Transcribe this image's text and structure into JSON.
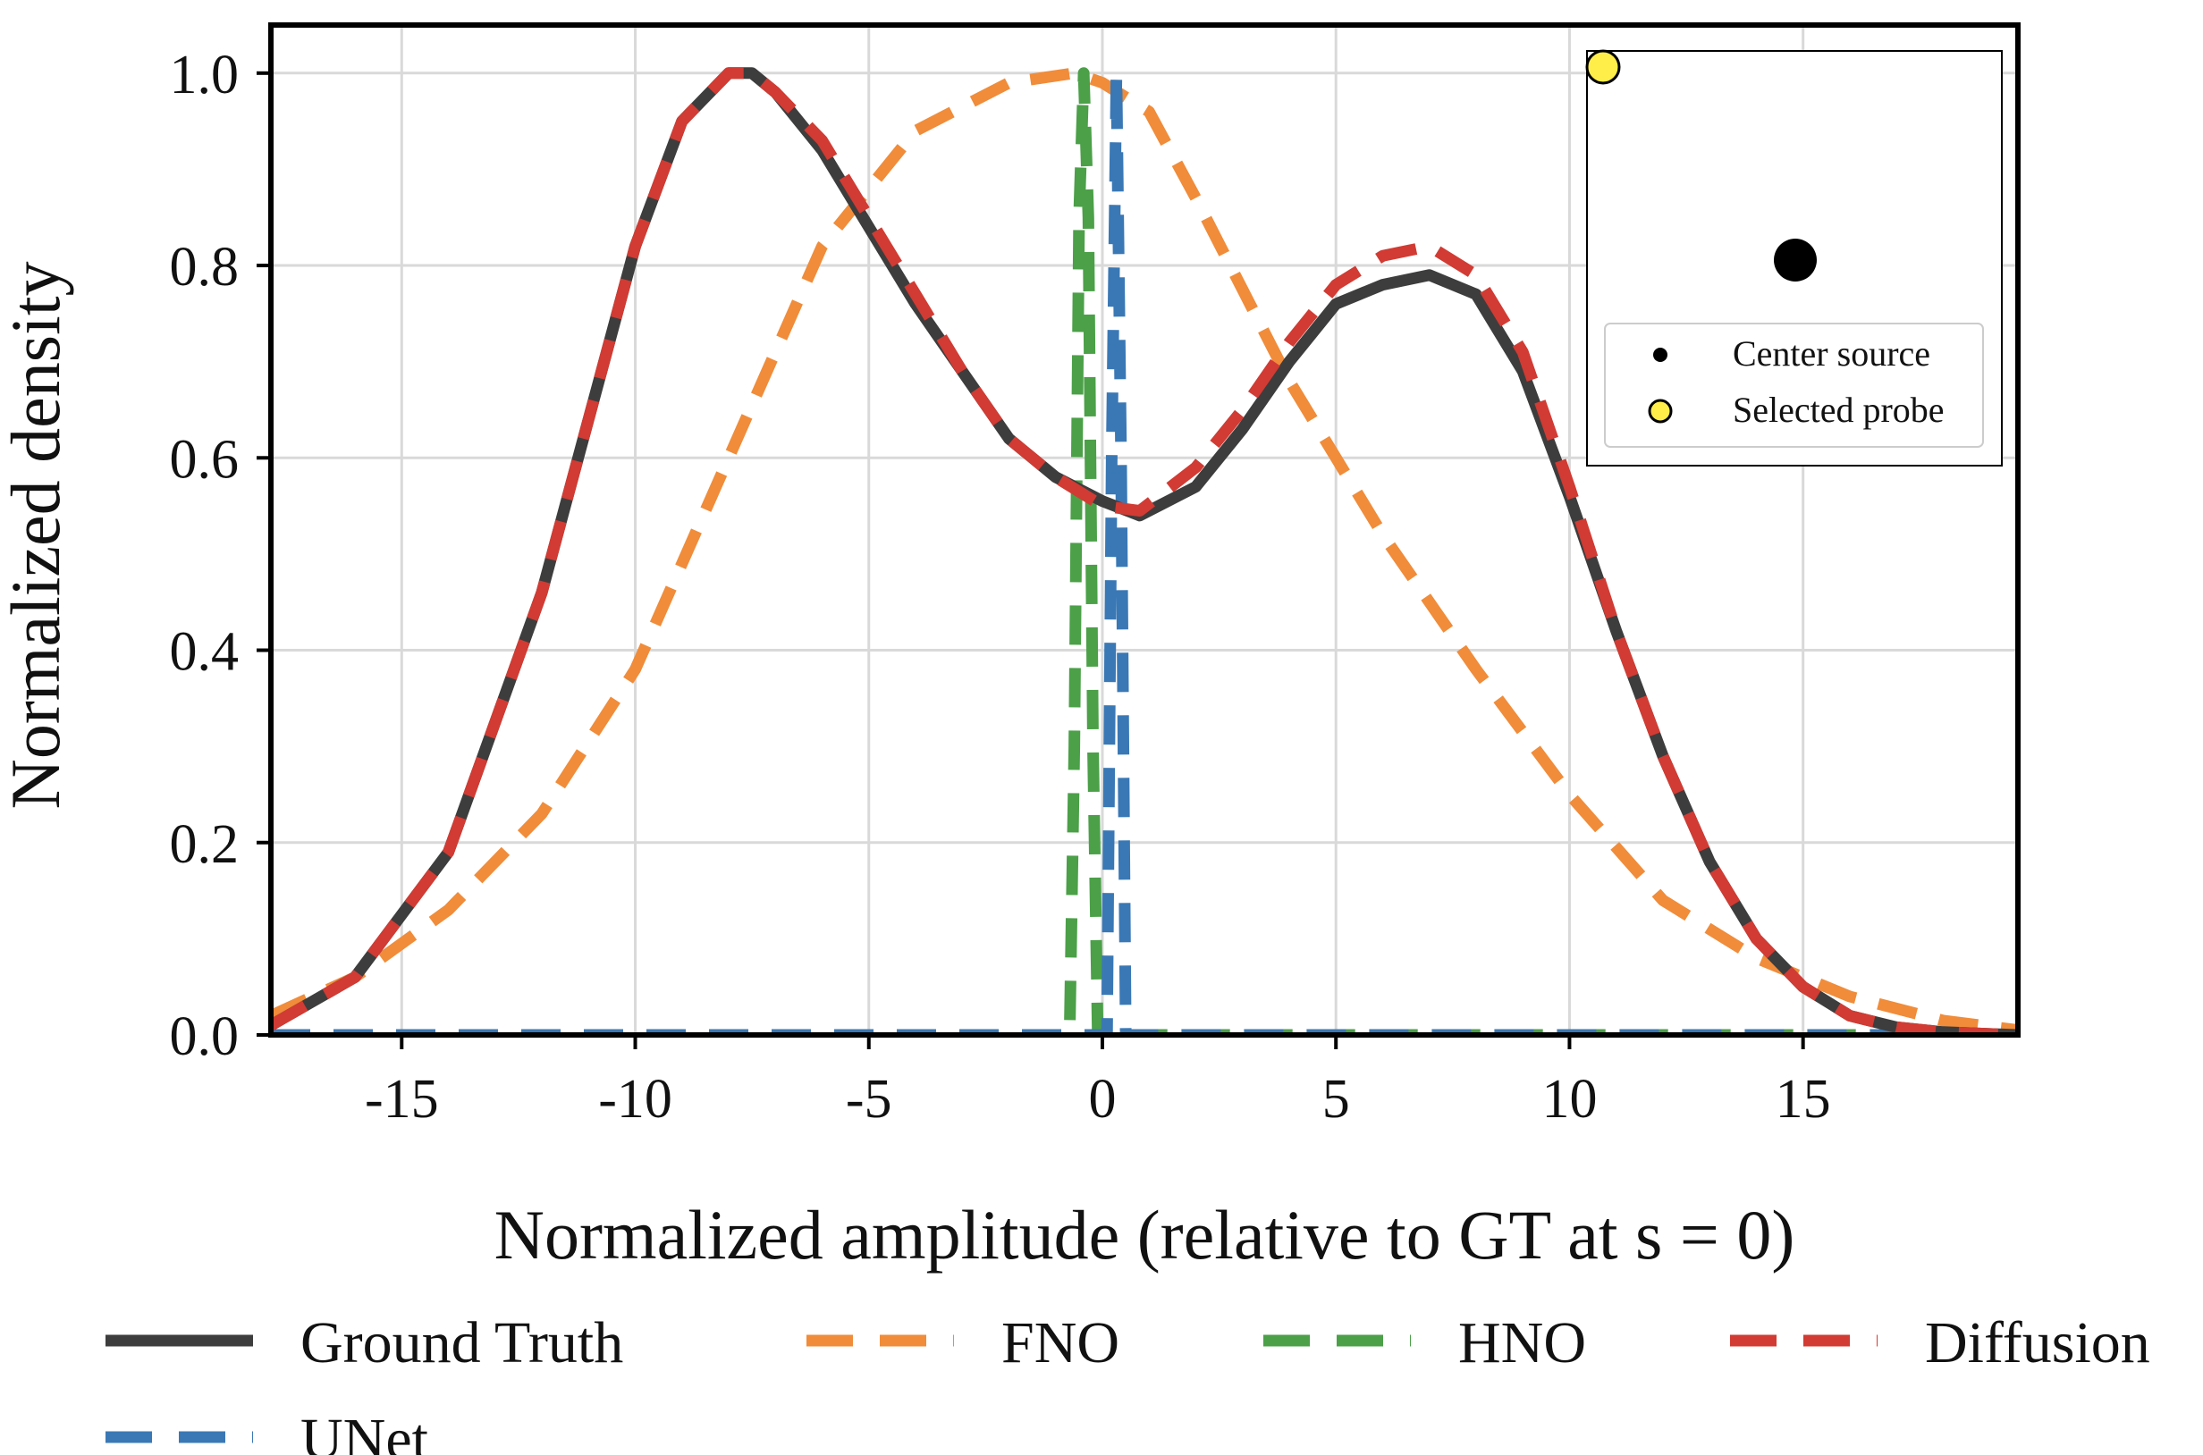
{
  "chart_data": {
    "type": "line",
    "title": "",
    "xlabel": "Normalized amplitude (relative to GT at s = 0)",
    "ylabel": "Normalized density",
    "xlim": [
      -17.8,
      19.6
    ],
    "ylim": [
      0,
      1.05
    ],
    "x_ticks": [
      -15,
      -10,
      -5,
      0,
      5,
      10,
      15
    ],
    "x_tick_labels": [
      "-15",
      "-10",
      "-5",
      "0",
      "5",
      "10",
      "15"
    ],
    "y_ticks": [
      0.0,
      0.2,
      0.4,
      0.6,
      0.8,
      1.0
    ],
    "y_tick_labels": [
      "0.0",
      "0.2",
      "0.4",
      "0.6",
      "0.8",
      "1.0"
    ],
    "grid": true,
    "legend_position": "bottom",
    "series": [
      {
        "name": "Ground Truth",
        "color": "#3d3d3d",
        "style": "solid",
        "x": [
          -17.8,
          -16,
          -14,
          -12,
          -10,
          -9,
          -8,
          -7.5,
          -7,
          -6,
          -5,
          -4,
          -3,
          -2,
          -1,
          0,
          0.8,
          2,
          3,
          4,
          5,
          6,
          7,
          8,
          9,
          10,
          11,
          12,
          13,
          14,
          15,
          16,
          17,
          18,
          19,
          19.6
        ],
        "y": [
          0.01,
          0.06,
          0.19,
          0.46,
          0.82,
          0.95,
          1.0,
          1.0,
          0.98,
          0.92,
          0.84,
          0.76,
          0.69,
          0.62,
          0.58,
          0.555,
          0.54,
          0.57,
          0.63,
          0.7,
          0.76,
          0.78,
          0.79,
          0.77,
          0.69,
          0.56,
          0.42,
          0.29,
          0.18,
          0.1,
          0.05,
          0.02,
          0.008,
          0.003,
          0.001,
          0.0
        ]
      },
      {
        "name": "FNO",
        "color": "#f08c3a",
        "style": "dashed",
        "x": [
          -17.8,
          -16,
          -14,
          -12,
          -10,
          -8,
          -6,
          -4,
          -2,
          -0.6,
          0,
          1,
          2,
          4,
          6,
          8,
          10,
          12,
          14,
          16,
          18,
          19.6
        ],
        "y": [
          0.02,
          0.06,
          0.13,
          0.23,
          0.38,
          0.6,
          0.82,
          0.94,
          0.99,
          1.0,
          0.99,
          0.96,
          0.87,
          0.68,
          0.52,
          0.38,
          0.25,
          0.14,
          0.08,
          0.04,
          0.015,
          0.005
        ]
      },
      {
        "name": "HNO",
        "color": "#4ba048",
        "style": "dashed",
        "x": [
          -17.8,
          -0.7,
          -0.6,
          -0.5,
          -0.4,
          -0.3,
          -0.2,
          -0.1,
          19.6
        ],
        "y": [
          0.0,
          0.0,
          0.3,
          0.85,
          1.0,
          0.85,
          0.3,
          0.0,
          0.0
        ]
      },
      {
        "name": "Diffusion",
        "color": "#d13b33",
        "style": "dashed",
        "x": [
          -17.8,
          -16,
          -14,
          -12,
          -10,
          -9,
          -8,
          -7.5,
          -7,
          -6,
          -5,
          -4,
          -3,
          -2,
          -1,
          0,
          0.8,
          2,
          3,
          4,
          5,
          6,
          7,
          8,
          9,
          10,
          11,
          12,
          13,
          14,
          15,
          16,
          17,
          18,
          19,
          19.6
        ],
        "y": [
          0.01,
          0.06,
          0.19,
          0.46,
          0.82,
          0.95,
          1.0,
          1.0,
          0.98,
          0.93,
          0.85,
          0.77,
          0.69,
          0.62,
          0.58,
          0.55,
          0.545,
          0.59,
          0.65,
          0.72,
          0.78,
          0.81,
          0.82,
          0.79,
          0.71,
          0.57,
          0.42,
          0.29,
          0.18,
          0.1,
          0.05,
          0.02,
          0.008,
          0.003,
          0.001,
          0.0
        ]
      },
      {
        "name": "UNet",
        "color": "#3a78b5",
        "style": "dashed",
        "x": [
          -17.8,
          0.1,
          0.2,
          0.3,
          0.4,
          0.5,
          19.6
        ],
        "y": [
          0.0,
          0.0,
          0.6,
          1.0,
          0.6,
          0.0,
          0.0
        ]
      }
    ],
    "inset": {
      "legend": [
        {
          "label": "Center source",
          "color": "#000000"
        },
        {
          "label": "Selected probe",
          "color": "#ffee4a"
        }
      ]
    }
  }
}
